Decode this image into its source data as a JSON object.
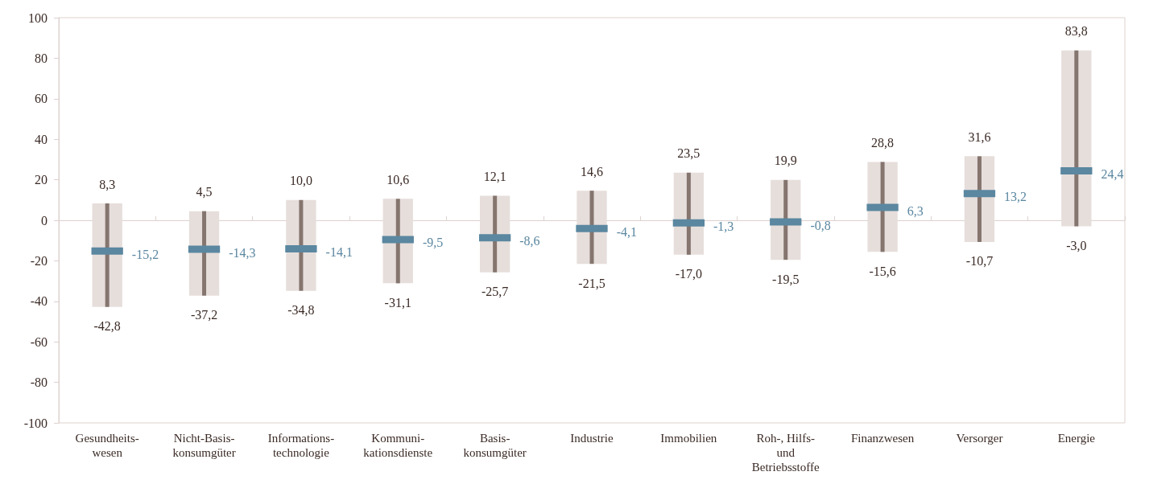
{
  "chart_data": {
    "type": "box",
    "categories": [
      "Gesundheits-\nwesen",
      "Nicht-Basis-\nkonsumgüter",
      "Informations-\ntechnologie",
      "Kommuni-\nkationsdienste",
      "Basis-\nkonsumgüter",
      "Industrie",
      "Immobilien",
      "Roh-, Hilfs-\nund\nBetriebsstoffe",
      "Finanzwesen",
      "Versorger",
      "Energie"
    ],
    "ylim": [
      -100,
      100
    ],
    "yticks": [
      -100,
      -80,
      -60,
      -40,
      -20,
      0,
      20,
      40,
      60,
      80,
      100
    ],
    "series": [
      {
        "color": "#e6dedb",
        "boxes": [
          {
            "low": -42.8,
            "q1": -42.8,
            "median": -15.2,
            "q3": 8.3,
            "high": 8.3
          },
          {
            "low": -37.2,
            "q1": -37.2,
            "median": -14.3,
            "q3": 4.5,
            "high": 4.5
          },
          {
            "low": -34.8,
            "q1": -34.8,
            "median": -14.1,
            "q3": 10.0,
            "high": 10.0
          },
          {
            "low": -31.1,
            "q1": -31.1,
            "median": -9.5,
            "q3": 10.6,
            "high": 10.6
          },
          {
            "low": -25.7,
            "q1": -25.7,
            "median": -8.6,
            "q3": 12.1,
            "high": 12.1
          },
          {
            "low": -21.5,
            "q1": -21.5,
            "median": -4.1,
            "q3": 14.6,
            "high": 14.6
          },
          {
            "low": -17.0,
            "q1": -17.0,
            "median": -1.3,
            "q3": 23.5,
            "high": 23.5
          },
          {
            "low": -19.5,
            "q1": -19.5,
            "median": -0.8,
            "q3": 19.9,
            "high": 19.9
          },
          {
            "low": -15.6,
            "q1": -15.6,
            "median": 6.3,
            "q3": 28.8,
            "high": 28.8
          },
          {
            "low": -10.7,
            "q1": -10.7,
            "median": 13.2,
            "q3": 31.6,
            "high": 31.6
          },
          {
            "low": -3.0,
            "q1": -3.0,
            "median": 24.4,
            "q3": 83.8,
            "high": 83.8
          }
        ]
      }
    ],
    "annotations": [
      {
        "text": "8,3",
        "x": "Gesundheits-\nwesen",
        "y": 8.3
      },
      {
        "text": "-15,2",
        "x": "Gesundheits-\nwesen",
        "y": -15.2
      },
      {
        "text": "-42,8",
        "x": "Gesundheits-\nwesen",
        "y": -42.8
      },
      {
        "text": "4,5",
        "x": "Nicht-Basis-\nkonsumgüter",
        "y": 4.5
      },
      {
        "text": "-14,3",
        "x": "Nicht-Basis-\nkonsumgüter",
        "y": -14.3
      },
      {
        "text": "-37,2",
        "x": "Nicht-Basis-\nkonsumgüter",
        "y": -37.2
      },
      {
        "text": "10,0",
        "x": "Informations-\ntechnologie",
        "y": 10.0
      },
      {
        "text": "-14,1",
        "x": "Informations-\ntechnologie",
        "y": -14.1
      },
      {
        "text": "-34,8",
        "x": "Informations-\ntechnologie",
        "y": -34.8
      },
      {
        "text": "10,6",
        "x": "Kommuni-\nkationsdienste",
        "y": 10.6
      },
      {
        "text": "-9,5",
        "x": "Kommuni-\nkationsdienste",
        "y": -9.5
      },
      {
        "text": "-31,1",
        "x": "Kommuni-\nkationsdienste",
        "y": -31.1
      },
      {
        "text": "12,1",
        "x": "Basis-\nkonsumgüter",
        "y": 12.1
      },
      {
        "text": "-8,6",
        "x": "Basis-\nkonsumgüter",
        "y": -8.6
      },
      {
        "text": "-25,7",
        "x": "Basis-\nkonsumgüter",
        "y": -25.7
      },
      {
        "text": "14,6",
        "x": "Industrie",
        "y": 14.6
      },
      {
        "text": "-4,1",
        "x": "Industrie",
        "y": -4.1
      },
      {
        "text": "-21,5",
        "x": "Industrie",
        "y": -21.5
      },
      {
        "text": "23,5",
        "x": "Immobilien",
        "y": 23.5
      },
      {
        "text": "-1,3",
        "x": "Immobilien",
        "y": -1.3
      },
      {
        "text": "-17,0",
        "x": "Immobilien",
        "y": -17.0
      },
      {
        "text": "19,9",
        "x": "Roh-, Hilfs-\nund\nBetriebsstoffe",
        "y": 19.9
      },
      {
        "text": "-0,8",
        "x": "Roh-, Hilfs-\nund\nBetriebsstoffe",
        "y": -0.8
      },
      {
        "text": "-19,5",
        "x": "Roh-, Hilfs-\nund\nBetriebsstoffe",
        "y": -19.5
      },
      {
        "text": "28,8",
        "x": "Finanzwesen",
        "y": 28.8
      },
      {
        "text": "6,3",
        "x": "Finanzwesen",
        "y": 6.3
      },
      {
        "text": "-15,6",
        "x": "Finanzwesen",
        "y": -15.6
      },
      {
        "text": "31,6",
        "x": "Versorger",
        "y": 31.6
      },
      {
        "text": "13,2",
        "x": "Versorger",
        "y": 13.2
      },
      {
        "text": "-10,7",
        "x": "Versorger",
        "y": -10.7
      },
      {
        "text": "83,8",
        "x": "Energie",
        "y": 83.8
      },
      {
        "text": "24,4",
        "x": "Energie",
        "y": 24.4
      },
      {
        "text": "-3,0",
        "x": "Energie",
        "y": -3.0
      }
    ]
  }
}
